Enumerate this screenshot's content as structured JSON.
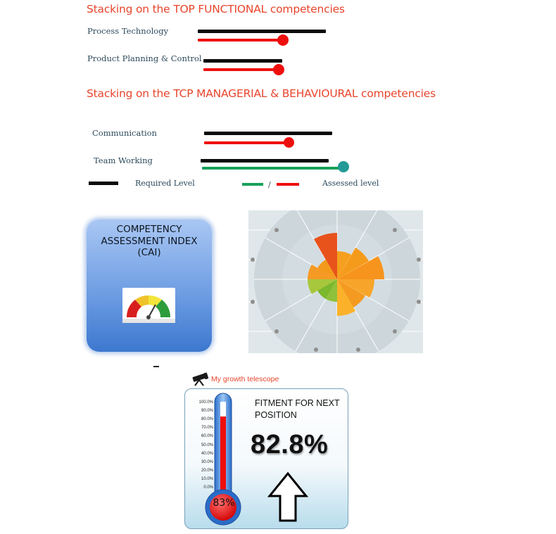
{
  "functional": {
    "title": "Stacking on the TOP FUNCTIONAL competencies",
    "items": [
      {
        "label": "Process Technology",
        "required_level": 0.82,
        "assessed_level": 0.55
      },
      {
        "label": "Product Planning & Control",
        "required_level": 0.5,
        "assessed_level": 0.48
      }
    ]
  },
  "managerial": {
    "title": "Stacking on the TCP MANAGERIAL & BEHAVIOURAL  competencies",
    "items": [
      {
        "label": "Communication",
        "required_level": 0.8,
        "assessed_level": 0.53
      },
      {
        "label": "Team Working",
        "required_level": 0.82,
        "assessed_level": 0.91
      }
    ]
  },
  "legend": {
    "required": "Required Level",
    "separator": "/",
    "assessed": "Assessed level"
  },
  "cai": {
    "title_line1": "COMPETENCY",
    "title_line2": "ASSESSMENT  INDEX",
    "title_line3": "(CAI)"
  },
  "telescope": {
    "label": "My growth telescope"
  },
  "fitment": {
    "title_line1": "FITMENT FOR NEXT",
    "title_line2": "POSITION",
    "value": "82.8%",
    "bulb_label": "83%",
    "fill_fraction": 0.828,
    "ticks": [
      "100.0%",
      "90.0%",
      "80.0%",
      "70.0%",
      "60.0%",
      "50.0%",
      "40.0%",
      "30.0%",
      "20.0%",
      "10.0%",
      "0.0%"
    ]
  },
  "colors": {
    "accent_red": "#ef0e0e",
    "assessed_green": "#18a05a",
    "required_black": "#0a0a0a",
    "title_orange": "#e8452c"
  }
}
